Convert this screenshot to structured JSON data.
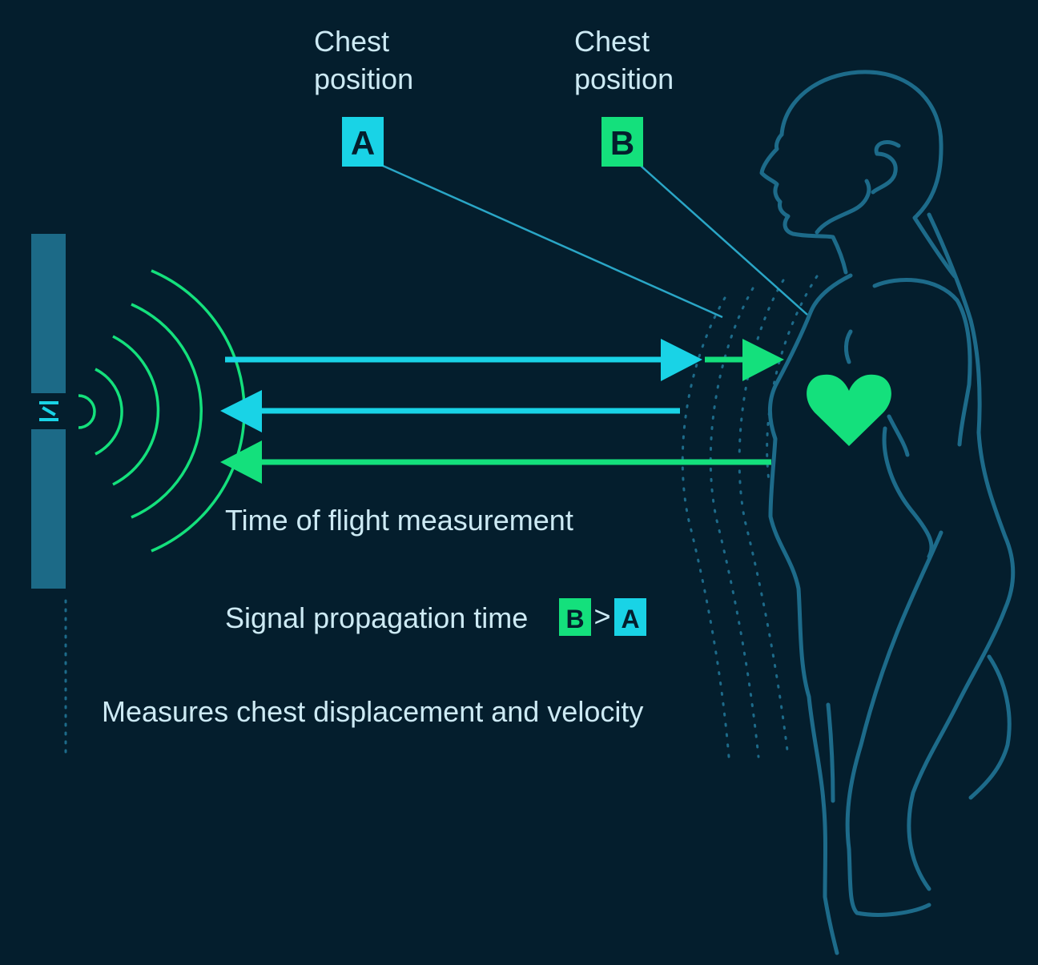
{
  "labels": {
    "chest_a_line1": "Chest",
    "chest_a_line2": "position",
    "chest_b_line1": "Chest",
    "chest_b_line2": "position",
    "badge_a": "A",
    "badge_b": "B",
    "time_of_flight": "Time of flight measurement",
    "propagation_prefix": "Signal propagation time",
    "propagation_b": "B",
    "propagation_gt": ">",
    "propagation_a": "A",
    "measures": "Measures chest displacement and velocity"
  },
  "colors": {
    "background": "#041e2d",
    "cyan": "#19d3e6",
    "green": "#14e07c",
    "body_outline": "#1d6b8a",
    "sensor_bar": "#1c6a87",
    "text": "#cdeaf4"
  },
  "icons": {
    "sensor": "radar-sensor-icon",
    "heart": "heart-icon",
    "person": "person-silhouette-icon"
  }
}
